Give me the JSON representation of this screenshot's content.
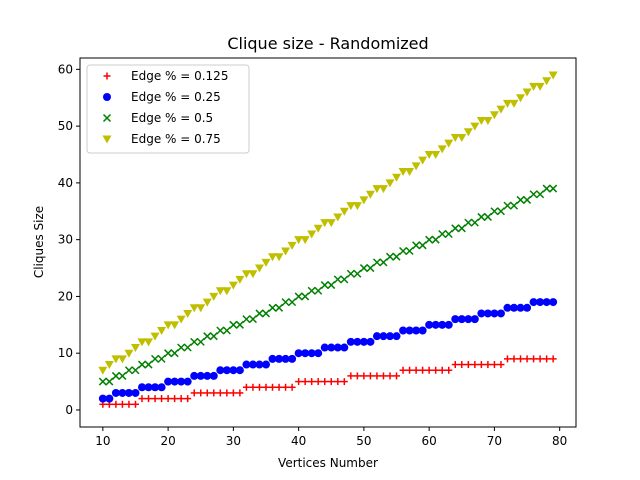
{
  "chart_data": {
    "type": "scatter",
    "title": "Clique size - Randomized",
    "xlabel": "Vertices Number",
    "ylabel": "Cliques Size",
    "xlim": [
      6.5,
      82.5
    ],
    "ylim": [
      -3.0,
      62.0
    ],
    "xticks": [
      10,
      20,
      30,
      40,
      50,
      60,
      70,
      80
    ],
    "yticks": [
      0,
      10,
      20,
      30,
      40,
      50,
      60
    ],
    "grid": false,
    "legend_position": "top-left",
    "x": [
      10,
      11,
      12,
      13,
      14,
      15,
      16,
      17,
      18,
      19,
      20,
      21,
      22,
      23,
      24,
      25,
      26,
      27,
      28,
      29,
      30,
      31,
      32,
      33,
      34,
      35,
      36,
      37,
      38,
      39,
      40,
      41,
      42,
      43,
      44,
      45,
      46,
      47,
      48,
      49,
      50,
      51,
      52,
      53,
      54,
      55,
      56,
      57,
      58,
      59,
      60,
      61,
      62,
      63,
      64,
      65,
      66,
      67,
      68,
      69,
      70,
      71,
      72,
      73,
      74,
      75,
      76,
      77,
      78,
      79
    ],
    "series": [
      {
        "name": "Edge % = 0.125",
        "marker": "plus",
        "color": "#ff0000",
        "values": [
          1,
          1,
          1,
          1,
          1,
          1,
          2,
          2,
          2,
          2,
          2,
          2,
          2,
          2,
          3,
          3,
          3,
          3,
          3,
          3,
          3,
          3,
          4,
          4,
          4,
          4,
          4,
          4,
          4,
          4,
          5,
          5,
          5,
          5,
          5,
          5,
          5,
          5,
          6,
          6,
          6,
          6,
          6,
          6,
          6,
          6,
          7,
          7,
          7,
          7,
          7,
          7,
          7,
          7,
          8,
          8,
          8,
          8,
          8,
          8,
          8,
          8,
          9,
          9,
          9,
          9,
          9,
          9,
          9,
          9
        ]
      },
      {
        "name": "Edge % = 0.25",
        "marker": "circle",
        "color": "#0000ff",
        "values": [
          2,
          2,
          3,
          3,
          3,
          3,
          4,
          4,
          4,
          4,
          5,
          5,
          5,
          5,
          6,
          6,
          6,
          6,
          7,
          7,
          7,
          7,
          8,
          8,
          8,
          8,
          9,
          9,
          9,
          9,
          10,
          10,
          10,
          10,
          11,
          11,
          11,
          11,
          12,
          12,
          12,
          12,
          13,
          13,
          13,
          13,
          14,
          14,
          14,
          14,
          15,
          15,
          15,
          15,
          16,
          16,
          16,
          16,
          17,
          17,
          17,
          17,
          18,
          18,
          18,
          18,
          19,
          19,
          19,
          19
        ]
      },
      {
        "name": "Edge % = 0.5",
        "marker": "x",
        "color": "#008000",
        "values": [
          5,
          5,
          6,
          6,
          7,
          7,
          8,
          8,
          9,
          9,
          10,
          10,
          11,
          11,
          12,
          12,
          13,
          13,
          14,
          14,
          15,
          15,
          16,
          16,
          17,
          17,
          18,
          18,
          19,
          19,
          20,
          20,
          21,
          21,
          22,
          22,
          23,
          23,
          24,
          24,
          25,
          25,
          26,
          26,
          27,
          27,
          28,
          28,
          29,
          29,
          30,
          30,
          31,
          31,
          32,
          32,
          33,
          33,
          34,
          34,
          35,
          35,
          36,
          36,
          37,
          37,
          38,
          38,
          39,
          39
        ]
      },
      {
        "name": "Edge % = 0.75",
        "marker": "triangle-down",
        "color": "#bfbf00",
        "values": [
          7,
          8,
          9,
          9,
          10,
          11,
          12,
          12,
          13,
          14,
          15,
          15,
          16,
          17,
          18,
          18,
          19,
          20,
          21,
          21,
          22,
          23,
          24,
          24,
          25,
          26,
          27,
          27,
          28,
          29,
          30,
          30,
          31,
          32,
          33,
          33,
          34,
          35,
          36,
          36,
          37,
          38,
          39,
          39,
          40,
          41,
          42,
          42,
          43,
          44,
          45,
          45,
          46,
          47,
          48,
          48,
          49,
          50,
          51,
          51,
          52,
          53,
          54,
          54,
          55,
          56,
          57,
          57,
          58,
          59
        ]
      }
    ]
  }
}
